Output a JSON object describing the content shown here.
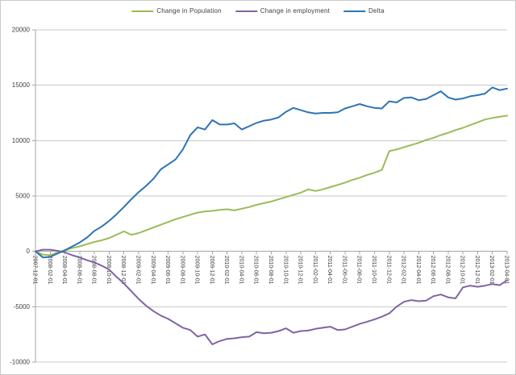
{
  "chart_data": {
    "type": "line",
    "title": "",
    "legend_position": "top",
    "grid": "horizontal",
    "ylim": [
      -10000,
      20000
    ],
    "y_ticks": [
      -10000,
      -5000,
      0,
      5000,
      10000,
      15000,
      20000
    ],
    "x_tick_every": 2,
    "x_tick_labels": [
      "2007-12-01",
      "2008-02-01",
      "2008-04-01",
      "2008-06-01",
      "2008-08-01",
      "2008-10-01",
      "2008-12-01",
      "2009-02-01",
      "2009-04-01",
      "2009-06-01",
      "2009-08-01",
      "2009-10-01",
      "2009-12-01",
      "2010-02-01",
      "2010-04-01",
      "2010-06-01",
      "2010-08-01",
      "2010-10-01",
      "2010-12-01",
      "2011-02-01",
      "2011-04-01",
      "2011-06-01",
      "2011-08-01",
      "2011-10-01",
      "2011-12-01",
      "2012-02-01",
      "2012-04-01",
      "2012-06-01",
      "2012-08-01",
      "2012-10-01",
      "2012-12-01",
      "2013-02-01",
      "2013-04-01"
    ],
    "x": [
      "2007-12-01",
      "2008-01-01",
      "2008-02-01",
      "2008-03-01",
      "2008-04-01",
      "2008-05-01",
      "2008-06-01",
      "2008-07-01",
      "2008-08-01",
      "2008-09-01",
      "2008-10-01",
      "2008-11-01",
      "2008-12-01",
      "2009-01-01",
      "2009-02-01",
      "2009-03-01",
      "2009-04-01",
      "2009-05-01",
      "2009-06-01",
      "2009-07-01",
      "2009-08-01",
      "2009-09-01",
      "2009-10-01",
      "2009-11-01",
      "2009-12-01",
      "2010-01-01",
      "2010-02-01",
      "2010-03-01",
      "2010-04-01",
      "2010-05-01",
      "2010-06-01",
      "2010-07-01",
      "2010-08-01",
      "2010-09-01",
      "2010-10-01",
      "2010-11-01",
      "2010-12-01",
      "2011-01-01",
      "2011-02-01",
      "2011-03-01",
      "2011-04-01",
      "2011-05-01",
      "2011-06-01",
      "2011-07-01",
      "2011-08-01",
      "2011-09-01",
      "2011-10-01",
      "2011-11-01",
      "2011-12-01",
      "2012-01-01",
      "2012-02-01",
      "2012-03-01",
      "2012-04-01",
      "2012-05-01",
      "2012-06-01",
      "2012-07-01",
      "2012-08-01",
      "2012-09-01",
      "2012-10-01",
      "2012-11-01",
      "2012-12-01",
      "2013-01-01",
      "2013-02-01",
      "2013-03-01",
      "2013-04-01"
    ],
    "series": [
      {
        "name": "Change in Population",
        "color": "#9BBB59",
        "values": [
          0,
          -300,
          -350,
          -100,
          100,
          300,
          450,
          650,
          850,
          1000,
          1200,
          1500,
          1800,
          1500,
          1650,
          1900,
          2150,
          2400,
          2650,
          2900,
          3100,
          3300,
          3500,
          3600,
          3650,
          3750,
          3800,
          3700,
          3850,
          4000,
          4200,
          4350,
          4500,
          4700,
          4900,
          5100,
          5300,
          5600,
          5450,
          5600,
          5800,
          6000,
          6200,
          6450,
          6650,
          6900,
          7100,
          7350,
          9050,
          9200,
          9400,
          9600,
          9800,
          10050,
          10250,
          10500,
          10700,
          10950,
          11150,
          11400,
          11650,
          11900,
          12050,
          12150,
          12250
        ]
      },
      {
        "name": "Change in employment",
        "color": "#8064A2",
        "values": [
          0,
          150,
          150,
          50,
          -100,
          -350,
          -550,
          -800,
          -1000,
          -1300,
          -1650,
          -2300,
          -2900,
          -3600,
          -4300,
          -4900,
          -5400,
          -5800,
          -6100,
          -6500,
          -6900,
          -7100,
          -7700,
          -7500,
          -8400,
          -8100,
          -7900,
          -7850,
          -7750,
          -7700,
          -7300,
          -7400,
          -7350,
          -7200,
          -6950,
          -7350,
          -7200,
          -7150,
          -7000,
          -6900,
          -6800,
          -7100,
          -7050,
          -6800,
          -6550,
          -6350,
          -6150,
          -5900,
          -5600,
          -5000,
          -4550,
          -4400,
          -4500,
          -4450,
          -4050,
          -3900,
          -4150,
          -4250,
          -3250,
          -3100,
          -3200,
          -3100,
          -2950,
          -3050,
          -2600
        ]
      },
      {
        "name": "Delta",
        "color": "#2E74B5",
        "values": [
          0,
          -550,
          -500,
          -200,
          100,
          450,
          800,
          1250,
          1850,
          2250,
          2750,
          3350,
          4000,
          4700,
          5350,
          5900,
          6550,
          7400,
          7850,
          8300,
          9200,
          10500,
          11200,
          11000,
          11850,
          11450,
          11450,
          11550,
          11000,
          11300,
          11600,
          11800,
          11900,
          12100,
          12600,
          12950,
          12750,
          12550,
          12450,
          12500,
          12500,
          12550,
          12900,
          13100,
          13300,
          13100,
          12950,
          12900,
          13550,
          13450,
          13850,
          13900,
          13650,
          13750,
          14100,
          14450,
          13900,
          13700,
          13800,
          14000,
          14100,
          14250,
          14800,
          14550,
          14700
        ]
      }
    ],
    "style": {
      "grid_color": "#C9C9C9",
      "axis_color": "#A6A6A6",
      "tick_label_color": "#3F3F3F",
      "background": "#FFFFFF"
    }
  }
}
